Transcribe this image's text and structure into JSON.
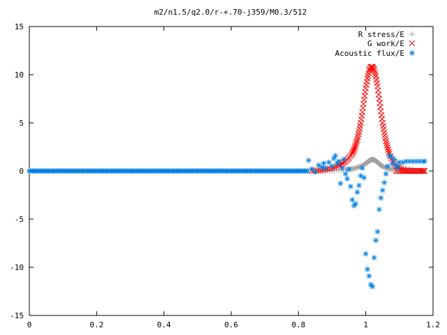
{
  "chart_data": {
    "type": "scatter",
    "title": "m2/n1.5/q2.0/r-+.70-j359/M0.3/512",
    "xlabel": "",
    "ylabel": "",
    "xlim": [
      0,
      1.2
    ],
    "ylim": [
      -15,
      15
    ],
    "x_ticks": [
      "0",
      "0.2",
      "0.4",
      "0.6",
      "0.8",
      "1",
      "1.2"
    ],
    "y_ticks": [
      "15",
      "10",
      "5",
      "0",
      "-5",
      "-10",
      "-15"
    ],
    "grid": false,
    "legend_position": "top-right",
    "series": [
      {
        "name": "R stress/E",
        "marker": "plus",
        "color": "#a0a0a0",
        "x": [
          0.86,
          0.88,
          0.9,
          0.92,
          0.94,
          0.95,
          0.96,
          0.97,
          0.98,
          0.99,
          1.0,
          1.005,
          1.01,
          1.015,
          1.02,
          1.025,
          1.03,
          1.035,
          1.04,
          1.045,
          1.05,
          1.06,
          1.07,
          1.08,
          1.09,
          1.1,
          1.12,
          1.14,
          1.16,
          1.175
        ],
        "y": [
          0.0,
          0.02,
          0.05,
          0.08,
          0.12,
          0.16,
          0.22,
          0.3,
          0.42,
          0.58,
          0.78,
          0.92,
          1.05,
          1.15,
          1.2,
          1.16,
          1.05,
          0.9,
          0.75,
          0.6,
          0.48,
          0.32,
          0.22,
          0.15,
          0.1,
          0.07,
          0.04,
          0.02,
          0.01,
          0.0
        ]
      },
      {
        "name": "G work/E",
        "marker": "cross",
        "color": "#ff0000",
        "x": [
          0.84,
          0.86,
          0.88,
          0.9,
          0.92,
          0.93,
          0.94,
          0.95,
          0.96,
          0.965,
          0.97,
          0.975,
          0.98,
          0.985,
          0.99,
          0.995,
          1.0,
          1.005,
          1.01,
          1.015,
          1.02,
          1.025,
          1.03,
          1.035,
          1.04,
          1.045,
          1.05,
          1.055,
          1.06,
          1.065,
          1.07,
          1.08,
          1.09,
          1.1,
          1.12,
          1.14,
          1.16,
          1.175
        ],
        "y": [
          0.0,
          0.05,
          0.15,
          0.3,
          0.55,
          0.75,
          1.0,
          1.35,
          1.8,
          2.2,
          2.7,
          3.3,
          4.1,
          5.0,
          6.1,
          7.4,
          8.6,
          9.6,
          10.4,
          10.8,
          10.8,
          10.5,
          9.8,
          8.8,
          7.5,
          6.2,
          5.0,
          4.0,
          3.1,
          2.4,
          1.8,
          1.0,
          0.55,
          0.3,
          0.1,
          0.03,
          0.01,
          0.0
        ]
      },
      {
        "name": "Acoustic flux/E",
        "marker": "star",
        "color": "#0080e0",
        "x": [
          0.83,
          0.84,
          0.85,
          0.86,
          0.87,
          0.875,
          0.88,
          0.89,
          0.9,
          0.905,
          0.91,
          0.915,
          0.92,
          0.925,
          0.93,
          0.935,
          0.94,
          0.945,
          0.95,
          0.955,
          0.96,
          0.965,
          0.97,
          0.975,
          0.98,
          0.985,
          0.99,
          0.995,
          1.0,
          1.005,
          1.01,
          1.015,
          1.02,
          1.025,
          1.03,
          1.035,
          1.04,
          1.045,
          1.05,
          1.055,
          1.06,
          1.065,
          1.07,
          1.075,
          1.08,
          1.085,
          1.09,
          1.095,
          1.1,
          1.11,
          1.12,
          1.13,
          1.14,
          1.15,
          1.16,
          1.17,
          1.175
        ],
        "y": [
          1.1,
          0.2,
          -0.1,
          0.6,
          0.4,
          0.8,
          0.3,
          0.9,
          0.5,
          1.3,
          1.6,
          0.8,
          1.0,
          -1.3,
          0.3,
          1.2,
          -0.3,
          -0.8,
          0.2,
          -1.6,
          -3.0,
          -3.6,
          -3.4,
          -2.2,
          -1.5,
          -0.5,
          0.3,
          -0.7,
          -8.6,
          -10.2,
          -10.9,
          -11.8,
          -12.0,
          -9.0,
          -7.2,
          -6.3,
          -4.0,
          -2.8,
          -2.0,
          -1.2,
          -0.3,
          0.5,
          1.6,
          1.5,
          0.8,
          1.2,
          0.6,
          0.4,
          0.9,
          0.9,
          1.0,
          1.0,
          1.0,
          1.0,
          1.0,
          1.0,
          1.0
        ]
      }
    ]
  }
}
